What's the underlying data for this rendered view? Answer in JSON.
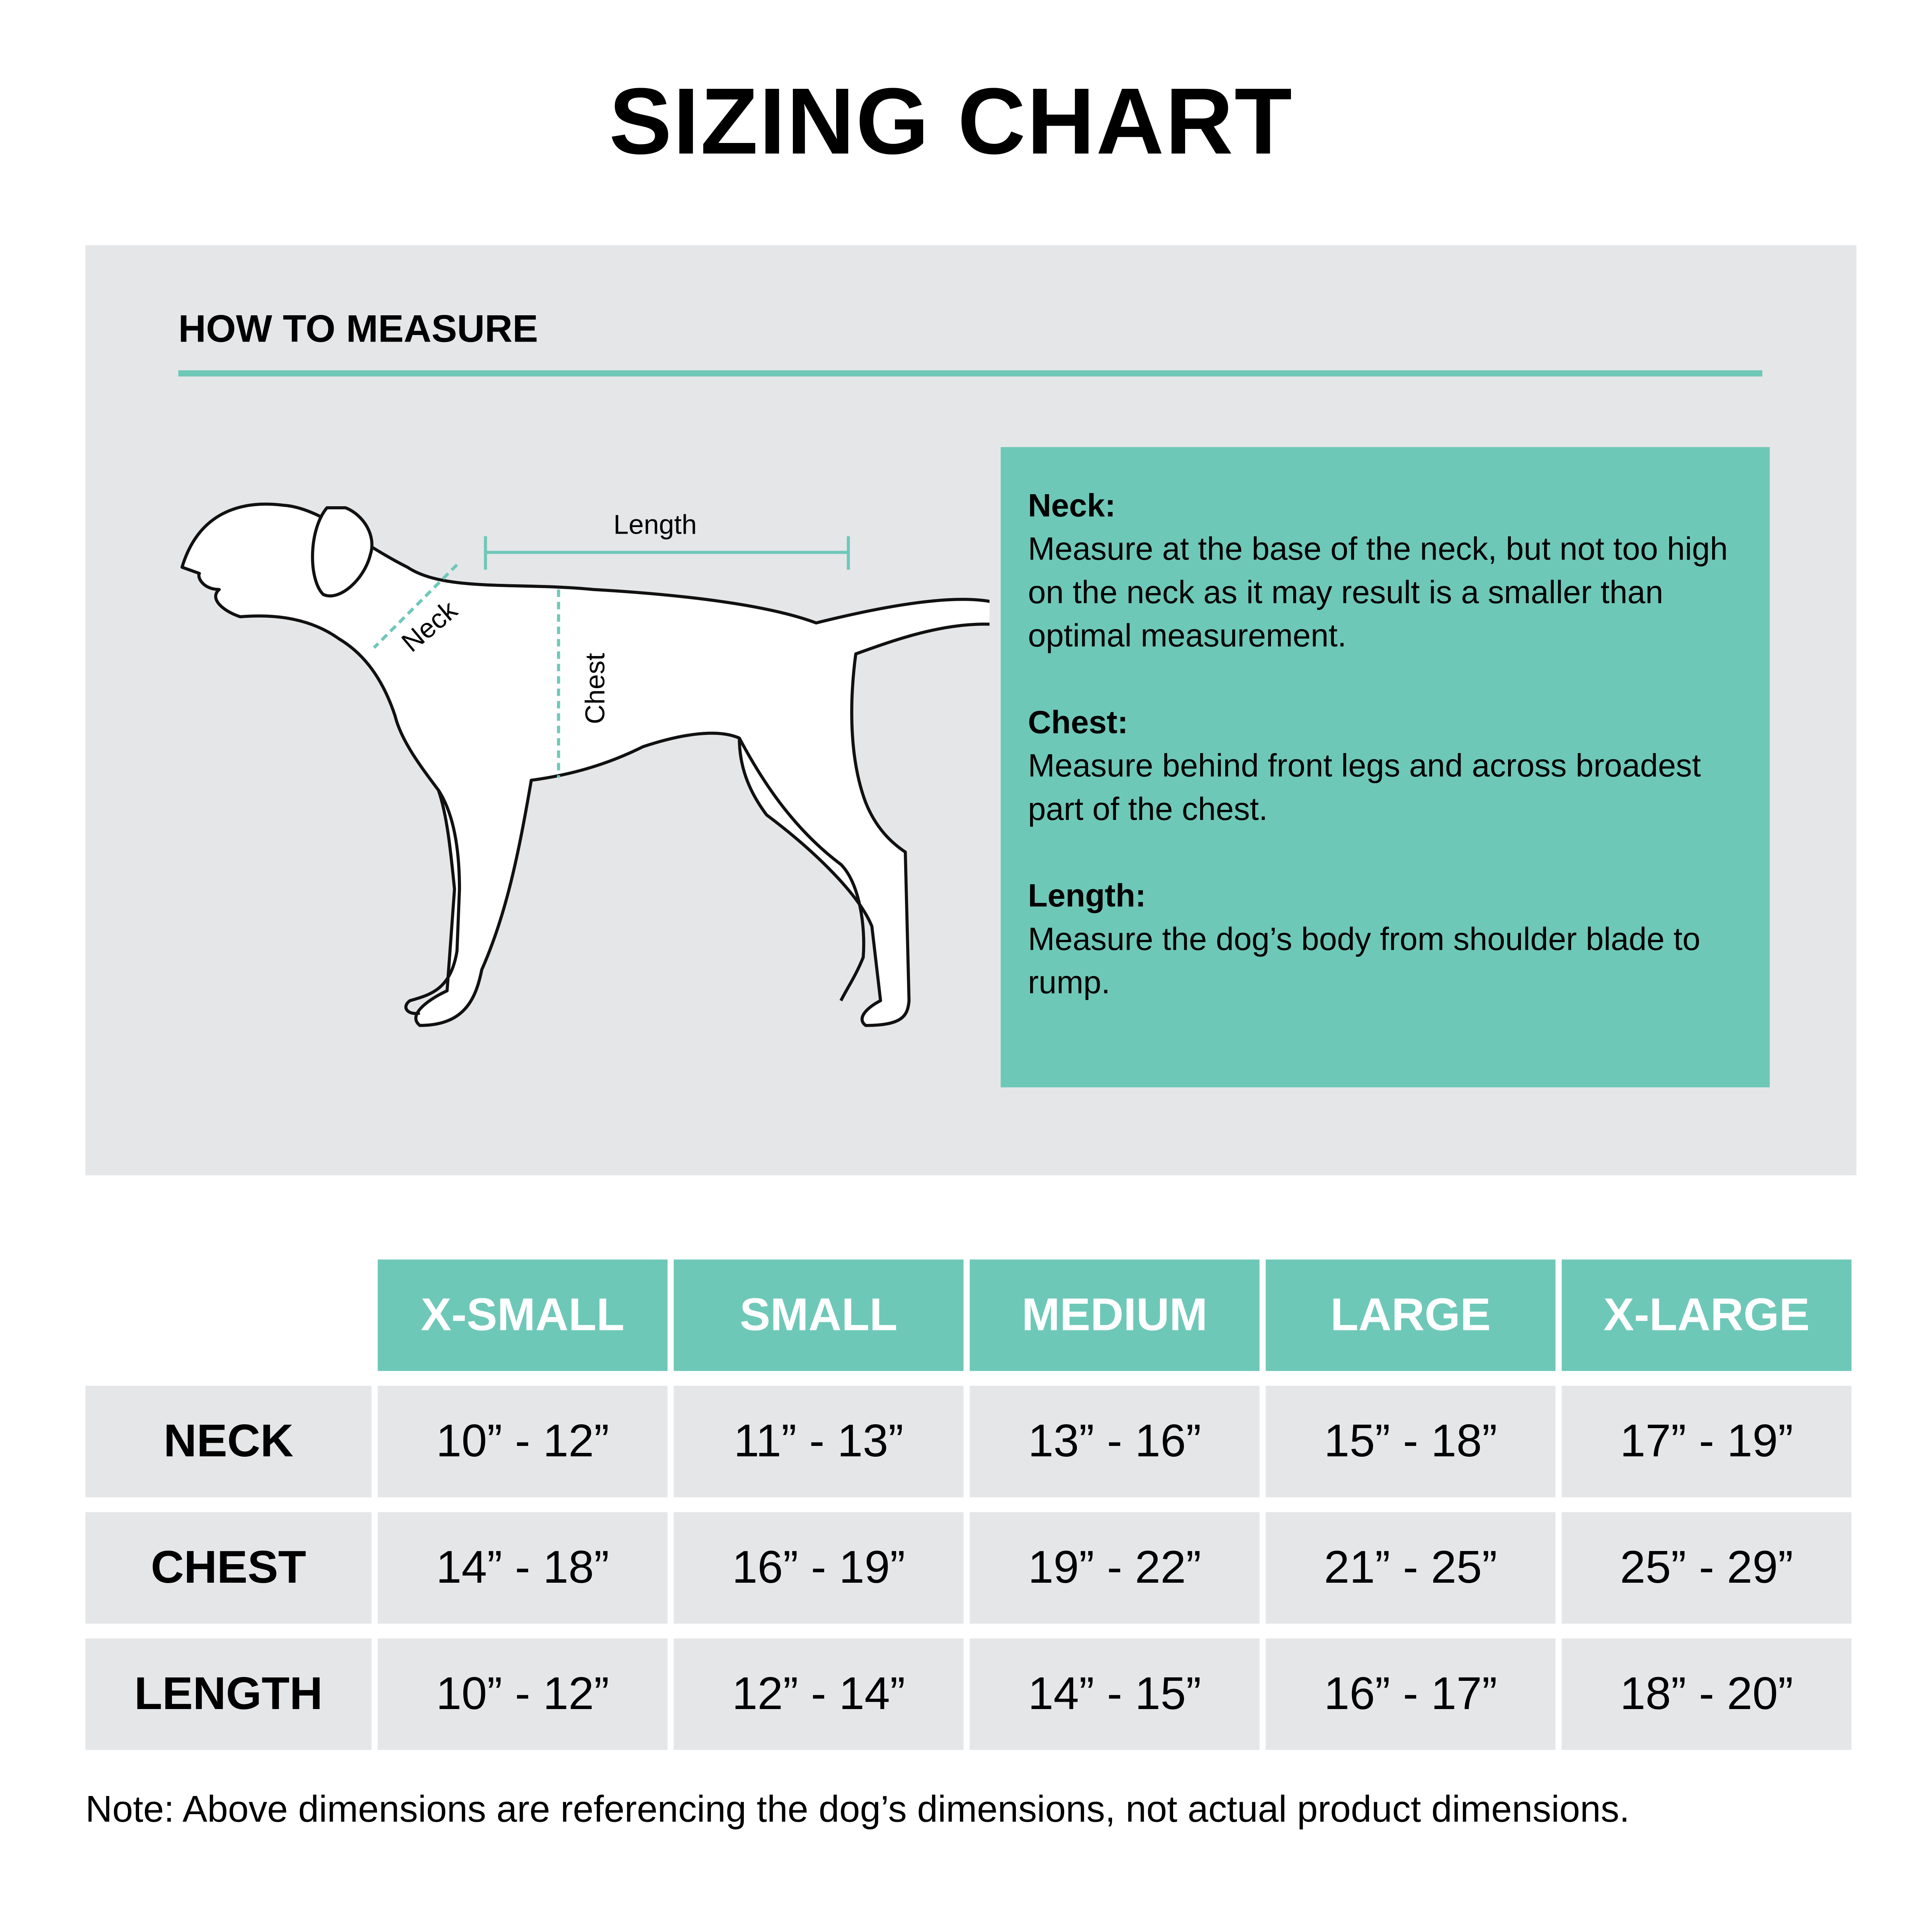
{
  "title": "SIZING CHART",
  "how_to_measure": {
    "heading": "HOW TO MEASURE",
    "diagram_labels": {
      "length": "Length",
      "neck": "Neck",
      "chest": "Chest"
    },
    "instructions": [
      {
        "label": "Neck:",
        "text": "Measure at the base of the neck, but not too high on the neck as it may result is a smaller than optimal measurement."
      },
      {
        "label": "Chest:",
        "text": "Measure behind front legs and across broadest part of the chest."
      },
      {
        "label": "Length:",
        "text": "Measure the dog’s body from shoulder blade to rump."
      }
    ]
  },
  "size_table": {
    "columns": [
      "X-SMALL",
      "SMALL",
      "MEDIUM",
      "LARGE",
      "X-LARGE"
    ],
    "rows": [
      {
        "label": "NECK",
        "values": [
          "10” - 12”",
          "11” - 13”",
          "13” - 16”",
          "15” - 18”",
          "17” - 19”"
        ]
      },
      {
        "label": "CHEST",
        "values": [
          "14” - 18”",
          "16” - 19”",
          "19” - 22”",
          "21” - 25”",
          "25” - 29”"
        ]
      },
      {
        "label": "LENGTH",
        "values": [
          "10” - 12”",
          "12” - 14”",
          "14” - 15”",
          "16” - 17”",
          "18” - 20”"
        ]
      }
    ]
  },
  "note": "Note: Above dimensions are referencing the dog’s dimensions, not actual product dimensions.",
  "colors": {
    "accent": "#6ec8b8",
    "panel": "#e5e6e8"
  }
}
